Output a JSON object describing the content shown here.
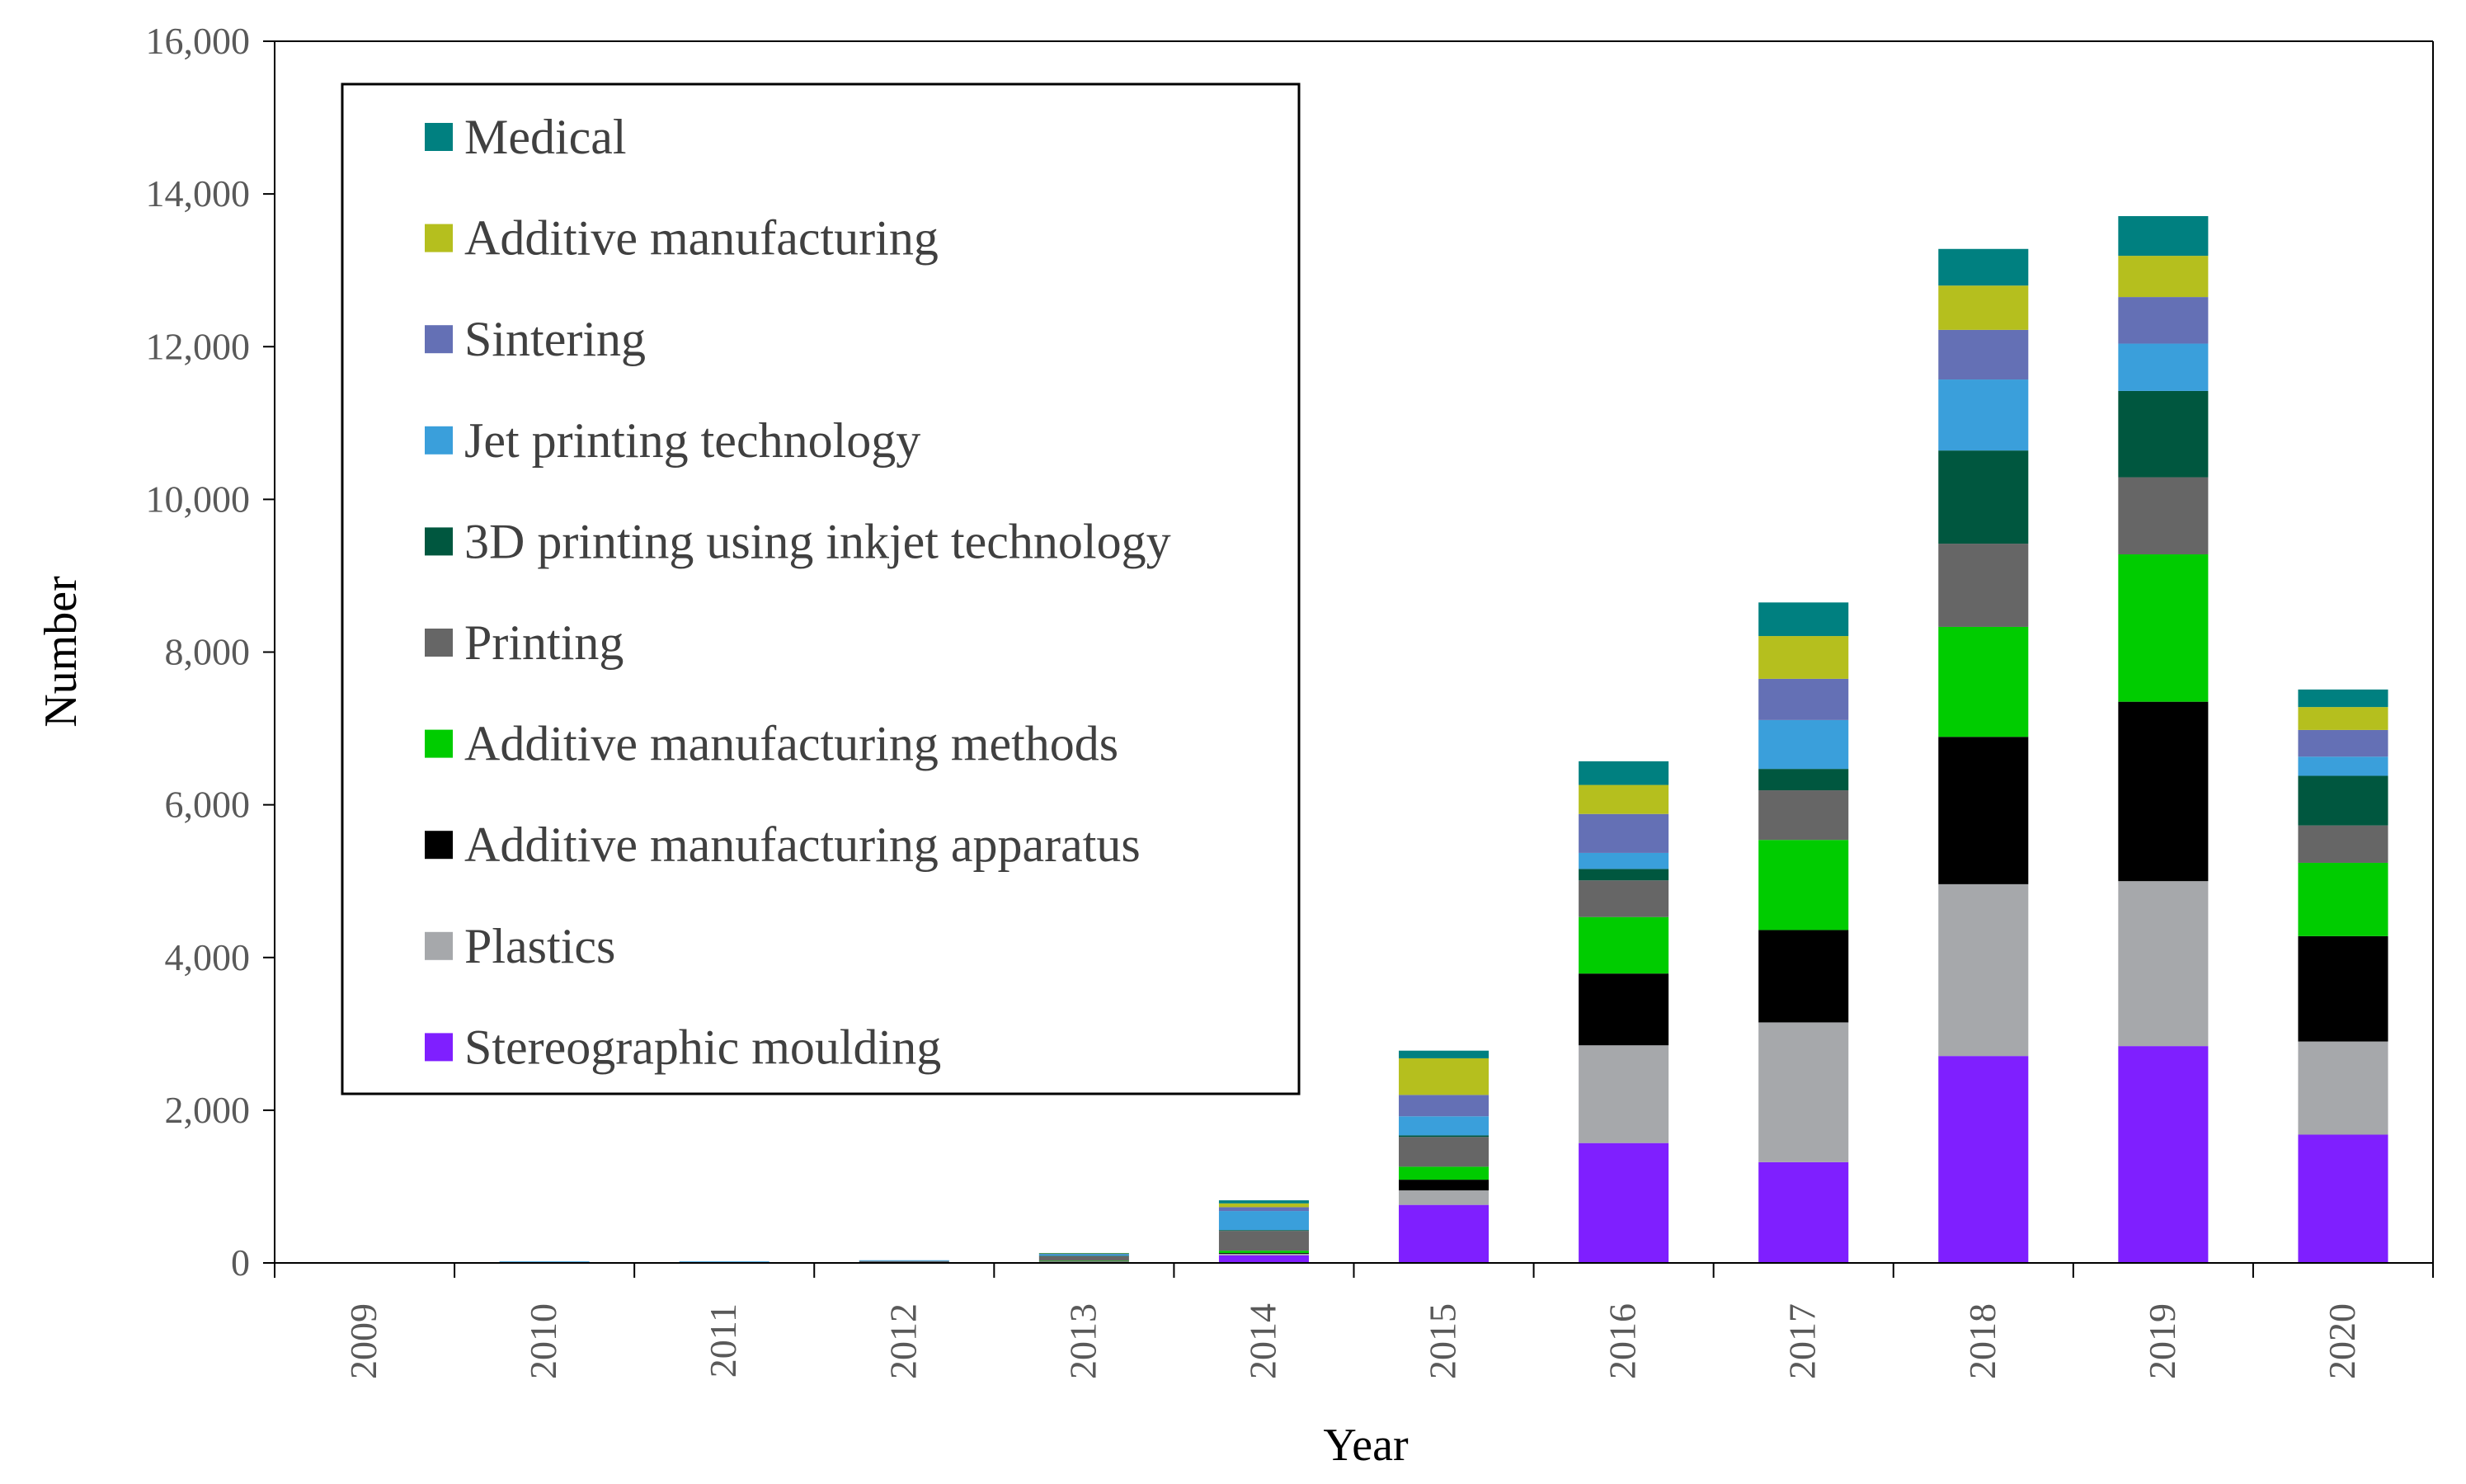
{
  "chart_data": {
    "type": "bar",
    "stacked": true,
    "title": "",
    "xlabel": "Year",
    "ylabel": "Number",
    "ylim": [
      0,
      16000
    ],
    "yticks": [
      0,
      2000,
      4000,
      6000,
      8000,
      10000,
      12000,
      14000,
      16000
    ],
    "ytick_labels": [
      "0",
      "2,000",
      "4,000",
      "6,000",
      "8,000",
      "10,000",
      "12,000",
      "14,000",
      "16,000"
    ],
    "categories": [
      "2009",
      "2010",
      "2011",
      "2012",
      "2013",
      "2014",
      "2015",
      "2016",
      "2017",
      "2018",
      "2019",
      "2020"
    ],
    "legend_position": "top-left",
    "series": [
      {
        "name": "Stereographic moulding",
        "color": "#7F1FFF",
        "values": [
          0,
          0,
          0,
          5,
          10,
          100,
          760,
          1570,
          1320,
          2710,
          2840,
          1680
        ]
      },
      {
        "name": "Plastics",
        "color": "#A6A8AB",
        "values": [
          0,
          0,
          0,
          5,
          10,
          20,
          190,
          1280,
          1830,
          2250,
          2160,
          1220
        ]
      },
      {
        "name": "Additive manufacturing apparatus",
        "color": "#000000",
        "values": [
          0,
          0,
          0,
          0,
          5,
          10,
          140,
          940,
          1210,
          1930,
          2350,
          1380
        ]
      },
      {
        "name": "Additive manufacturing methods",
        "color": "#00CC00",
        "values": [
          0,
          0,
          0,
          0,
          5,
          30,
          170,
          740,
          1180,
          1440,
          1930,
          960
        ]
      },
      {
        "name": "Printing",
        "color": "#666666",
        "values": [
          5,
          10,
          10,
          15,
          60,
          260,
          390,
          480,
          650,
          1090,
          1010,
          490
        ]
      },
      {
        "name": "3D printing using inkjet technology",
        "color": "#00573F",
        "values": [
          0,
          0,
          0,
          0,
          5,
          10,
          20,
          150,
          280,
          1220,
          1130,
          650
        ]
      },
      {
        "name": "Jet printing technology",
        "color": "#3A9FDB",
        "values": [
          5,
          10,
          10,
          10,
          20,
          250,
          250,
          210,
          640,
          930,
          620,
          250
        ]
      },
      {
        "name": "Sintering",
        "color": "#6470B5",
        "values": [
          0,
          0,
          0,
          0,
          5,
          50,
          280,
          510,
          540,
          650,
          610,
          350
        ]
      },
      {
        "name": "Additive manufacturing",
        "color": "#B5BF1E",
        "values": [
          0,
          0,
          0,
          0,
          5,
          50,
          480,
          380,
          560,
          580,
          540,
          300
        ]
      },
      {
        "name": "Medical",
        "color": "#008080",
        "values": [
          0,
          0,
          0,
          0,
          5,
          40,
          100,
          310,
          440,
          480,
          520,
          230
        ]
      }
    ]
  }
}
